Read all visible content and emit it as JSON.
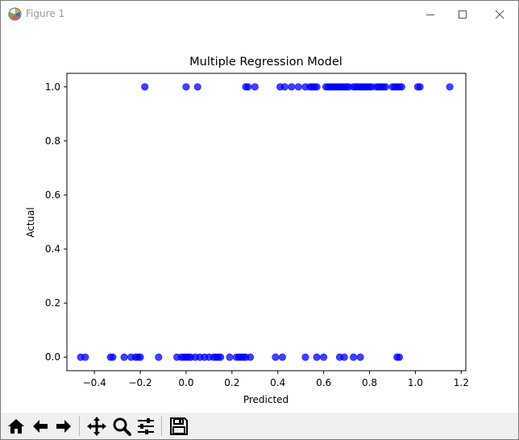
{
  "window": {
    "title": "Figure 1",
    "icons": [
      "matplotlib-app-icon",
      "minimize-icon",
      "maximize-icon",
      "close-icon"
    ]
  },
  "toolbar": {
    "buttons": [
      "home-icon",
      "back-icon",
      "forward-icon",
      "pan-icon",
      "zoom-icon",
      "configure-subplots-icon",
      "save-icon"
    ]
  },
  "colors": {
    "points": "#0000ff",
    "axes": "#000000"
  },
  "chart_data": {
    "type": "scatter",
    "title": "Multiple Regression Model",
    "xlabel": "Predicted",
    "ylabel": "Actual",
    "xlim": [
      -0.52,
      1.22
    ],
    "ylim": [
      -0.05,
      1.05
    ],
    "xticks": [
      -0.4,
      -0.2,
      0.0,
      0.2,
      0.4,
      0.6,
      0.8,
      1.0,
      1.2
    ],
    "xtick_labels": [
      "−0.4",
      "−0.2",
      "0.0",
      "0.2",
      "0.4",
      "0.6",
      "0.8",
      "1.0",
      "1.2"
    ],
    "yticks": [
      0.0,
      0.2,
      0.4,
      0.6,
      0.8,
      1.0
    ],
    "ytick_labels": [
      "0.0",
      "0.2",
      "0.4",
      "0.6",
      "0.8",
      "1.0"
    ],
    "grid": false,
    "legend": "none",
    "series": [
      {
        "color": "#0000ff",
        "alpha": 0.75,
        "x": [
          -0.18,
          0.0,
          0.05,
          0.26,
          0.27,
          0.3,
          0.41,
          0.43,
          0.46,
          0.49,
          0.52,
          0.54,
          0.55,
          0.56,
          0.57,
          0.61,
          0.62,
          0.63,
          0.64,
          0.65,
          0.66,
          0.67,
          0.68,
          0.69,
          0.7,
          0.71,
          0.73,
          0.74,
          0.75,
          0.76,
          0.77,
          0.78,
          0.79,
          0.8,
          0.81,
          0.83,
          0.84,
          0.85,
          0.86,
          0.87,
          0.9,
          0.91,
          0.92,
          0.93,
          0.94,
          1.01,
          1.02,
          1.15,
          -0.46,
          -0.44,
          -0.33,
          -0.32,
          -0.27,
          -0.24,
          -0.22,
          -0.21,
          -0.2,
          -0.12,
          -0.04,
          -0.02,
          -0.01,
          0.0,
          0.01,
          0.02,
          0.04,
          0.06,
          0.08,
          0.1,
          0.12,
          0.13,
          0.14,
          0.15,
          0.19,
          0.22,
          0.23,
          0.24,
          0.25,
          0.26,
          0.28,
          0.39,
          0.42,
          0.52,
          0.57,
          0.6,
          0.67,
          0.69,
          0.73,
          0.76,
          0.92,
          0.93
        ],
        "y": [
          1,
          1,
          1,
          1,
          1,
          1,
          1,
          1,
          1,
          1,
          1,
          1,
          1,
          1,
          1,
          1,
          1,
          1,
          1,
          1,
          1,
          1,
          1,
          1,
          1,
          1,
          1,
          1,
          1,
          1,
          1,
          1,
          1,
          1,
          1,
          1,
          1,
          1,
          1,
          1,
          1,
          1,
          1,
          1,
          1,
          1,
          1,
          1,
          0,
          0,
          0,
          0,
          0,
          0,
          0,
          0,
          0,
          0,
          0,
          0,
          0,
          0,
          0,
          0,
          0,
          0,
          0,
          0,
          0,
          0,
          0,
          0,
          0,
          0,
          0,
          0,
          0,
          0,
          0,
          0,
          0,
          0,
          0,
          0,
          0,
          0,
          0,
          0,
          0,
          0
        ]
      }
    ]
  }
}
